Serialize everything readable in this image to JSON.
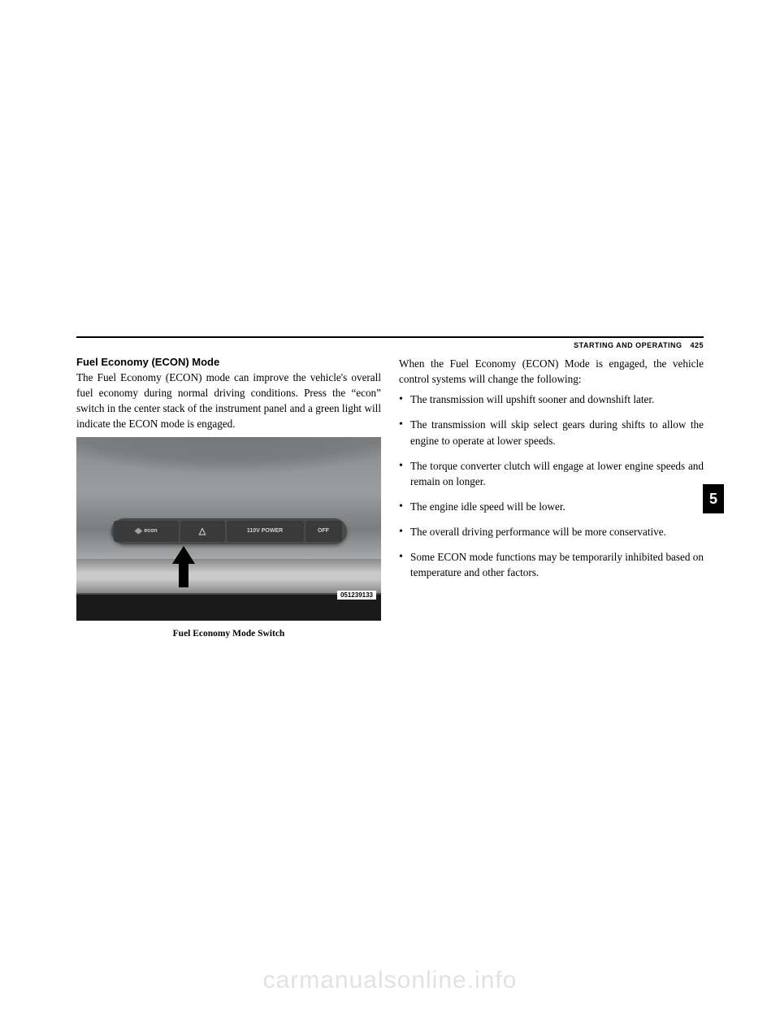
{
  "header": {
    "section": "STARTING AND OPERATING",
    "page": "425"
  },
  "sideTab": "5",
  "leftColumn": {
    "subheading": "Fuel Economy (ECON) Mode",
    "paragraph": "The Fuel Economy (ECON) mode can improve the vehicle's overall fuel economy during normal driving conditions. Press the “econ” switch in the center stack of the instrument panel and a green light will indicate the ECON mode is engaged.",
    "figure": {
      "buttons": {
        "econ": "econ",
        "power": "110V POWER",
        "off": "OFF"
      },
      "imageId": "051239133",
      "caption": "Fuel Economy Mode Switch"
    }
  },
  "rightColumn": {
    "intro": "When the Fuel Economy (ECON) Mode is engaged, the vehicle control systems will change the following:",
    "bullets": [
      "The transmission will upshift sooner and downshift later.",
      "The transmission will skip select gears during shifts to allow the engine to operate at lower speeds.",
      "The torque converter clutch will engage at lower engine speeds and remain on longer.",
      "The engine idle speed will be lower.",
      "The overall driving performance will be more conservative.",
      "Some ECON mode functions may be temporarily inhibited based on temperature and other factors."
    ]
  },
  "watermark": "carmanualsonline.info"
}
